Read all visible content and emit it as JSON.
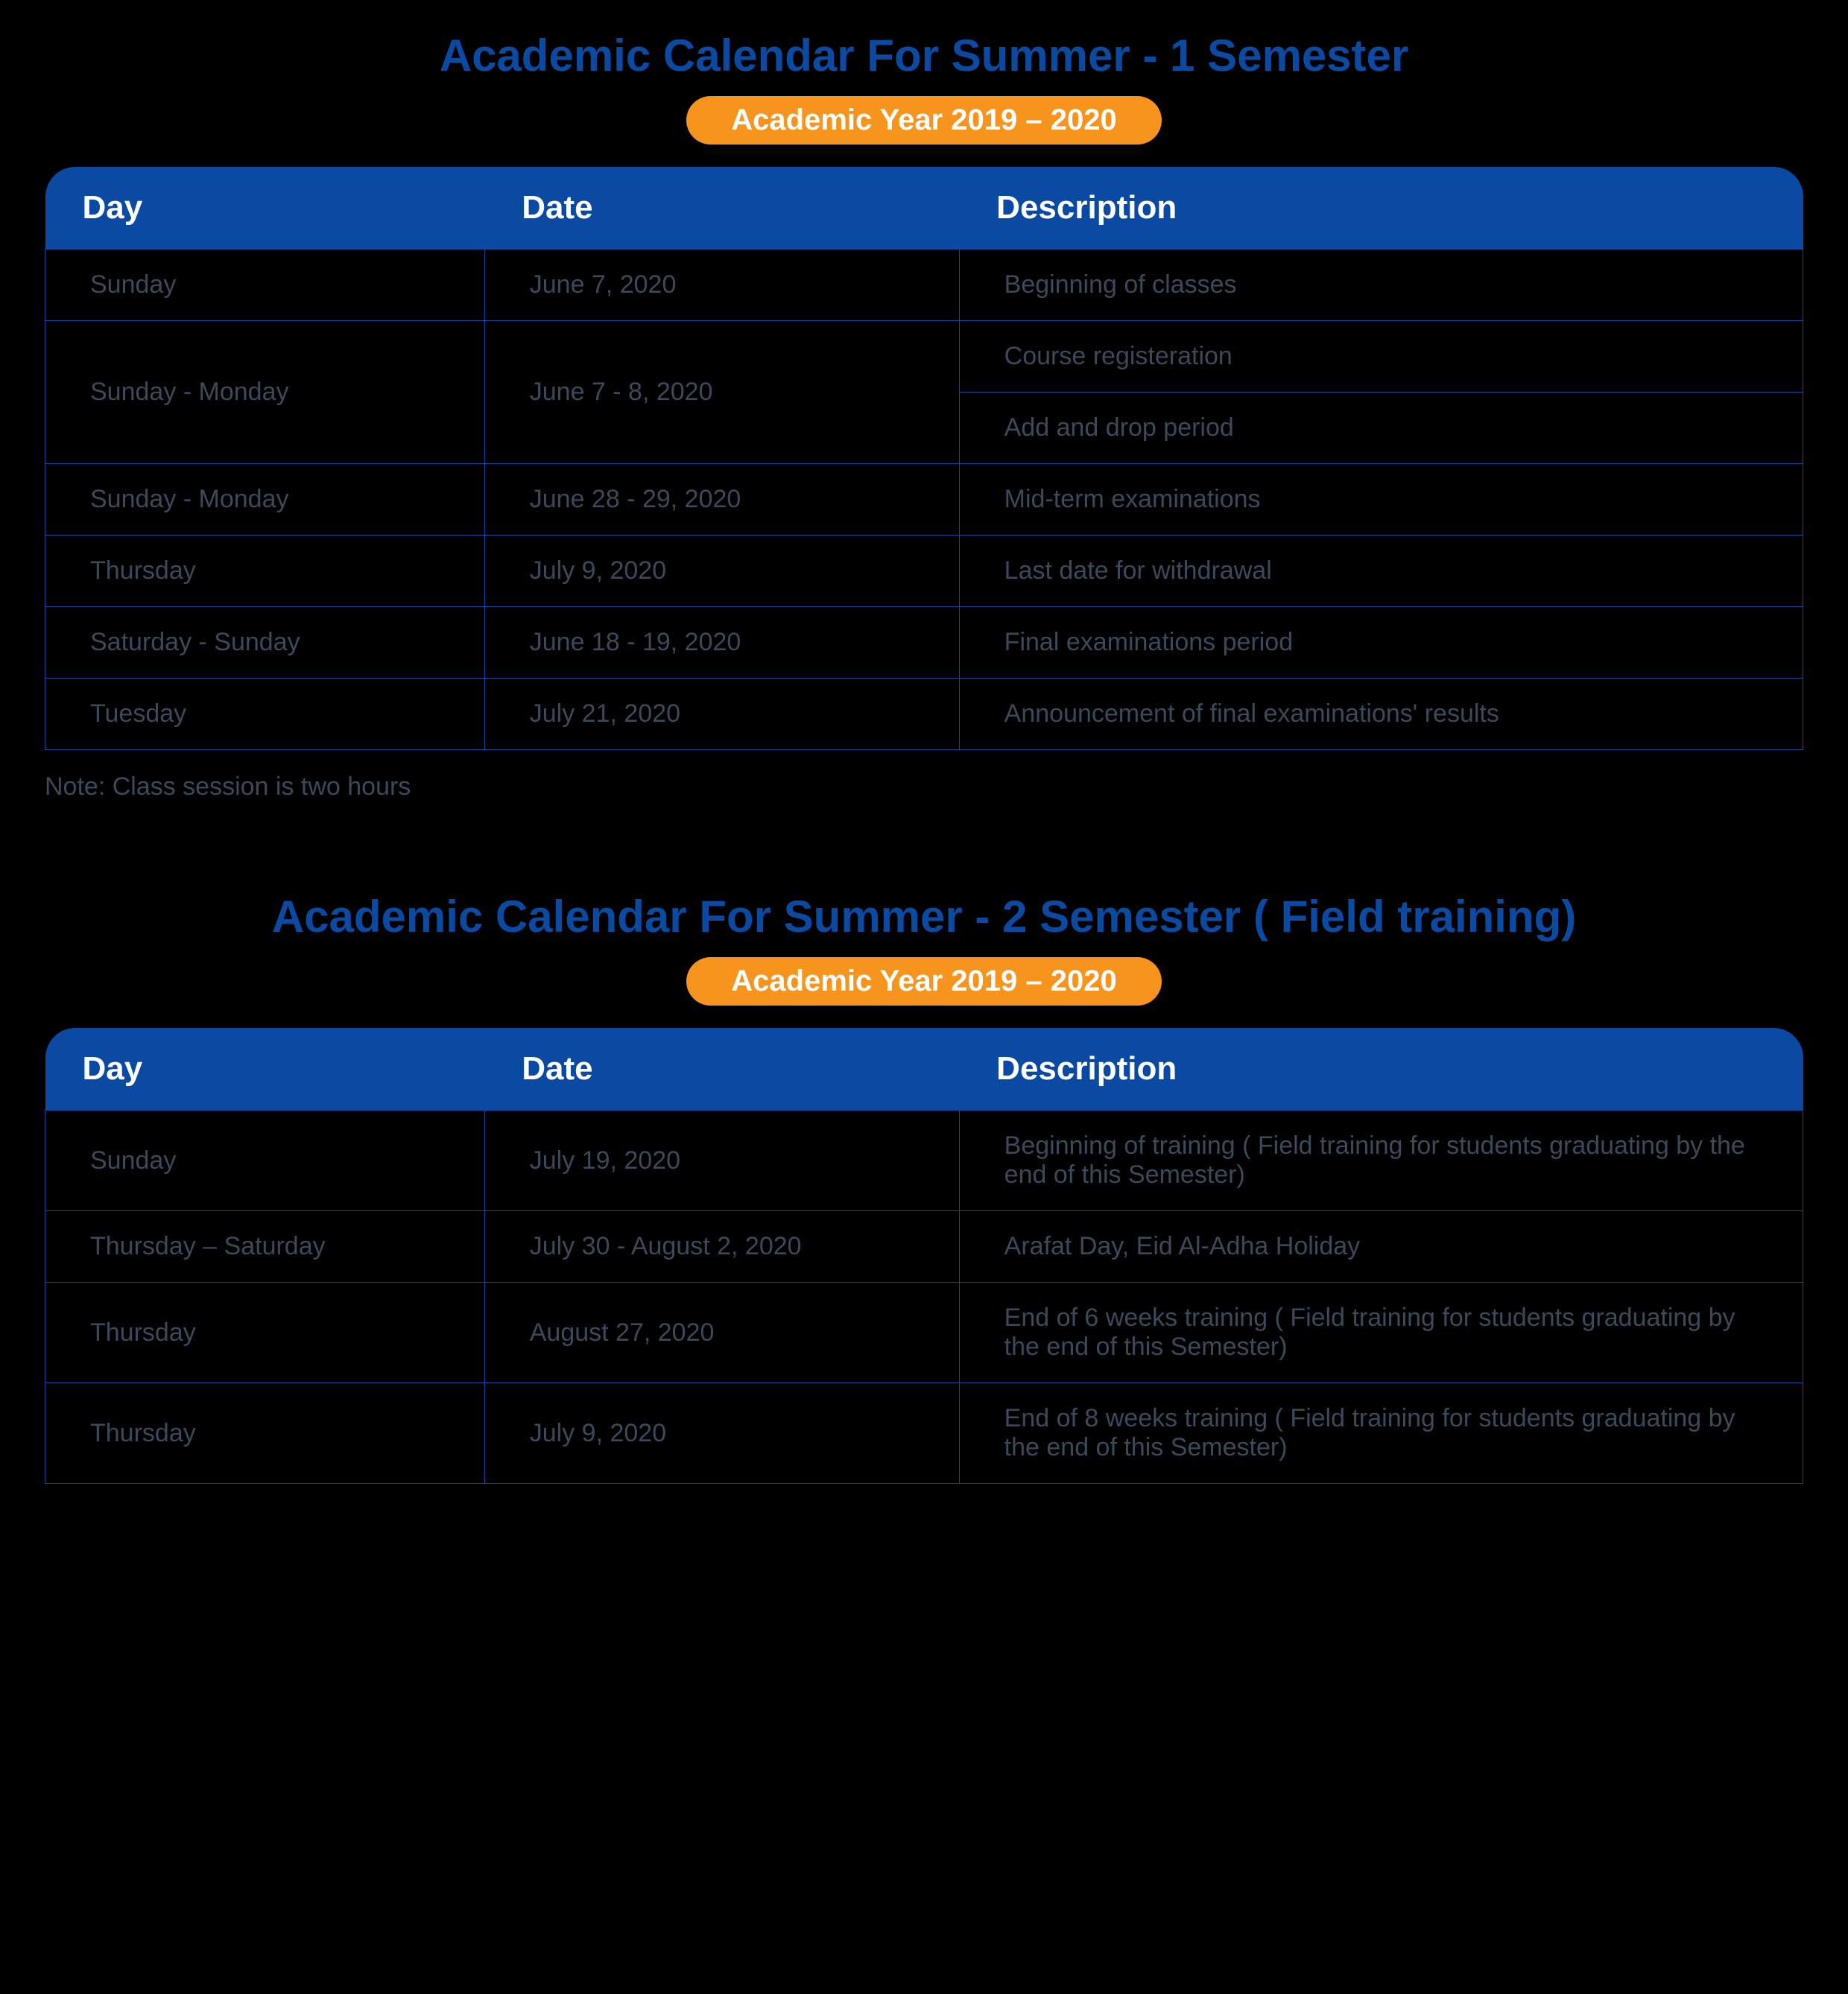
{
  "colors": {
    "title": "#0b4aa2",
    "badge_bg": "#f7941d",
    "header_bg": "#0b4aa2",
    "border": "#0b4aa2",
    "cell_text": "#3a4a5a",
    "background": "#000000"
  },
  "calendars": [
    {
      "title": "Academic Calendar For Summer - 1 Semester",
      "badge": "Academic Year 2019 – 2020",
      "columns": [
        "Day",
        "Date",
        "Description"
      ],
      "rows": [
        {
          "day": "Sunday",
          "date": "June 7, 2020",
          "desc": [
            "Beginning of classes"
          ]
        },
        {
          "day": "Sunday - Monday",
          "date": "June 7 - 8, 2020",
          "desc": [
            "Course registeration",
            "Add and drop period"
          ]
        },
        {
          "day": "Sunday - Monday",
          "date": "June 28 - 29, 2020",
          "desc": [
            "Mid-term examinations"
          ]
        },
        {
          "day": "Thursday",
          "date": "July 9, 2020",
          "desc": [
            "Last date for withdrawal"
          ]
        },
        {
          "day": "Saturday - Sunday",
          "date": "June 18 - 19, 2020",
          "desc": [
            "Final examinations period"
          ]
        },
        {
          "day": "Tuesday",
          "date": "July 21, 2020",
          "desc": [
            "Announcement of final examinations' results"
          ]
        }
      ],
      "note": "Note: Class session is two hours"
    },
    {
      "title": "Academic Calendar For Summer - 2 Semester ( Field training)",
      "badge": "Academic Year 2019 – 2020",
      "columns": [
        "Day",
        "Date",
        "Description"
      ],
      "rows": [
        {
          "day": "Sunday",
          "date": "July 19, 2020",
          "desc": [
            "Beginning of training ( Field training for students graduating by the end of this Semester)"
          ]
        },
        {
          "day": "Thursday – Saturday",
          "date": "July 30 - August 2, 2020",
          "desc": [
            "Arafat Day, Eid Al-Adha Holiday"
          ]
        },
        {
          "day": "Thursday",
          "date": "August 27, 2020",
          "desc": [
            "End of 6 weeks training ( Field training for students graduating by the end of this Semester)"
          ]
        },
        {
          "day": "Thursday",
          "date": "July 9, 2020",
          "desc": [
            "End of 8 weeks training ( Field training for students graduating by the end of this Semester)"
          ]
        }
      ],
      "note": ""
    }
  ]
}
